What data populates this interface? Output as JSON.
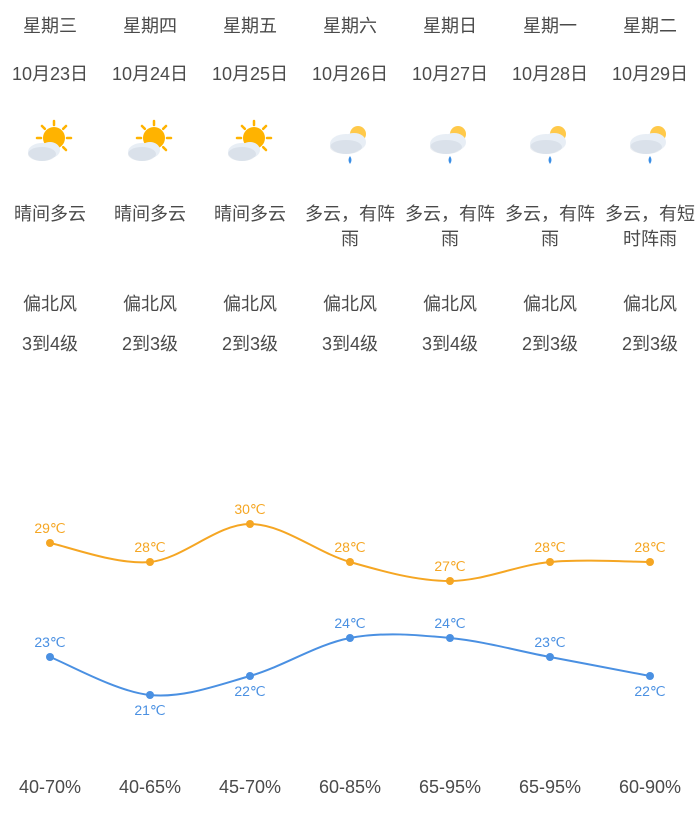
{
  "text_color": "#4a4a4a",
  "background_color": "#ffffff",
  "days": [
    {
      "weekday": "星期三",
      "date": "10月23日",
      "icon": "sunny_cloud",
      "condition": "晴间多云",
      "wind_dir": "偏北风",
      "wind_level": "3到4级",
      "high": 29,
      "low": 23,
      "humidity": "40-70%"
    },
    {
      "weekday": "星期四",
      "date": "10月24日",
      "icon": "sunny_cloud",
      "condition": "晴间多云",
      "wind_dir": "偏北风",
      "wind_level": "2到3级",
      "high": 28,
      "low": 21,
      "humidity": "40-65%"
    },
    {
      "weekday": "星期五",
      "date": "10月25日",
      "icon": "sunny_cloud",
      "condition": "晴间多云",
      "wind_dir": "偏北风",
      "wind_level": "2到3级",
      "high": 30,
      "low": 22,
      "humidity": "45-70%"
    },
    {
      "weekday": "星期六",
      "date": "10月26日",
      "icon": "cloud_rain",
      "condition": "多云，有阵雨",
      "wind_dir": "偏北风",
      "wind_level": "3到4级",
      "high": 28,
      "low": 24,
      "humidity": "60-85%"
    },
    {
      "weekday": "星期日",
      "date": "10月27日",
      "icon": "cloud_rain",
      "condition": "多云，有阵雨",
      "wind_dir": "偏北风",
      "wind_level": "3到4级",
      "high": 27,
      "low": 24,
      "humidity": "65-95%"
    },
    {
      "weekday": "星期一",
      "date": "10月28日",
      "icon": "cloud_rain",
      "condition": "多云，有阵雨",
      "wind_dir": "偏北风",
      "wind_level": "2到3级",
      "high": 28,
      "low": 23,
      "humidity": "65-95%"
    },
    {
      "weekday": "星期二",
      "date": "10月29日",
      "icon": "cloud_rain",
      "condition": "多云，有短时阵雨",
      "wind_dir": "偏北风",
      "wind_level": "2到3级",
      "high": 28,
      "low": 22,
      "humidity": "60-90%"
    }
  ],
  "temp_chart": {
    "type": "line",
    "x_count": 7,
    "high_series": {
      "color": "#f5a623",
      "line_width": 2,
      "marker": "circle",
      "marker_size": 4,
      "values": [
        29,
        28,
        30,
        28,
        27,
        28,
        28
      ]
    },
    "low_series": {
      "color": "#4a90e2",
      "line_width": 2,
      "marker": "circle",
      "marker_size": 4,
      "values": [
        23,
        21,
        22,
        24,
        24,
        23,
        22
      ]
    },
    "y_range": [
      20,
      32
    ],
    "label_fontsize": 14,
    "label_suffix": "℃",
    "high_label_positions": [
      "above",
      "above",
      "above",
      "above",
      "above",
      "above",
      "above"
    ],
    "low_label_positions": [
      "above",
      "below",
      "below",
      "above",
      "above",
      "above",
      "below"
    ]
  },
  "icons": {
    "sunny_cloud": {
      "sun_color": "#ffb300",
      "sun_ray_color": "#ffb300",
      "cloud_color": "#e8eef5",
      "cloud_shadow": "#b9c4d0"
    },
    "cloud_rain": {
      "sun_color": "#ffc94a",
      "cloud_color": "#e8eef5",
      "cloud_shadow": "#b9c4d0",
      "drop_color": "#3a8ee6"
    }
  }
}
